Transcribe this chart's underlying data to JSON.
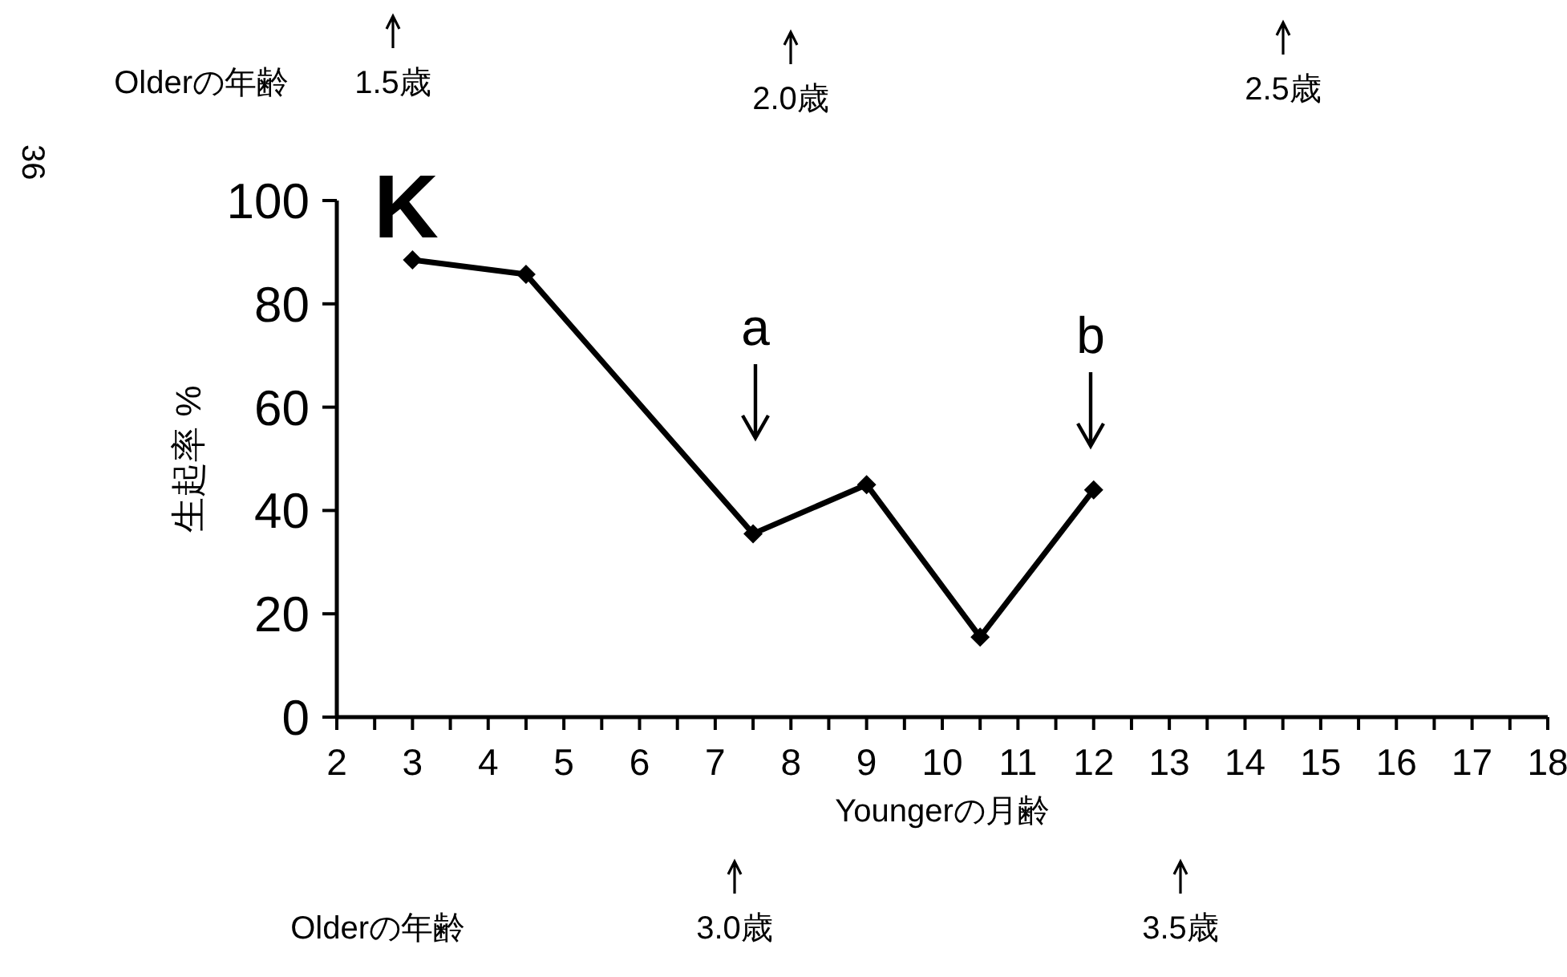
{
  "chart_data": {
    "type": "line",
    "title": "K",
    "xlabel": "Youngerの月齢",
    "ylabel": "生起率 %",
    "x": [
      3,
      4.5,
      7.5,
      9,
      10.5,
      12
    ],
    "values": [
      88.5,
      85.7,
      35.5,
      45,
      15.5,
      44
    ],
    "color": "#000000",
    "marker": "diamond",
    "line_style": "solid",
    "xlim": [
      2,
      18
    ],
    "xticks": [
      2,
      {
        "value": 2.5,
        "label": null
      },
      3,
      {
        "value": 3.5,
        "label": null
      },
      4,
      {
        "value": 4.5,
        "label": null
      },
      5,
      {
        "value": 5.5,
        "label": null
      },
      6,
      {
        "value": 6.5,
        "label": null
      },
      7,
      {
        "value": 7.5,
        "label": null
      },
      8,
      {
        "value": 8.5,
        "label": null
      },
      9,
      {
        "value": 9.5,
        "label": null
      },
      10,
      {
        "value": 10.5,
        "label": null
      },
      11,
      {
        "value": 11.5,
        "label": null
      },
      12,
      {
        "value": 12.5,
        "label": null
      },
      13,
      {
        "value": 13.5,
        "label": null
      },
      14,
      {
        "value": 14.5,
        "label": null
      },
      15,
      {
        "value": 15.5,
        "label": null
      },
      16,
      {
        "value": 16.5,
        "label": null
      },
      17,
      {
        "value": 17.5,
        "label": null
      },
      18
    ],
    "ylim": [
      0,
      100
    ],
    "yticks": [
      0,
      20,
      40,
      60,
      80,
      100
    ],
    "annotations": [
      "a",
      "b",
      "Olderの年齢",
      "1.5歳",
      "2.0歳",
      "2.5歳",
      "Olderの年齢",
      "3.0歳",
      "3.5歳",
      "36"
    ]
  }
}
